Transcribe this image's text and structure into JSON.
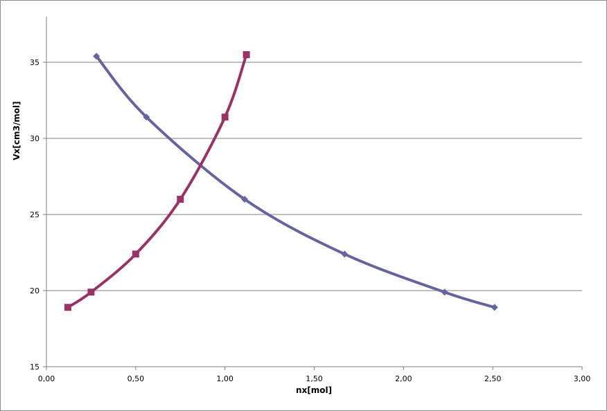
{
  "chart_data": {
    "type": "line",
    "title": "",
    "xlabel": "nx[mol]",
    "ylabel": "Vx[cm3/mol]",
    "xlim": [
      0,
      3
    ],
    "ylim": [
      15,
      38
    ],
    "x_ticks": [
      "0,00",
      "0,50",
      "1,00",
      "1,50",
      "2,00",
      "2,50",
      "3,00"
    ],
    "x_tick_values": [
      0,
      0.5,
      1,
      1.5,
      2,
      2.5,
      3
    ],
    "y_ticks": [
      "15",
      "20",
      "25",
      "30",
      "35"
    ],
    "y_tick_values": [
      15,
      20,
      25,
      30,
      35
    ],
    "grid": "horizontal",
    "legend": "none",
    "series": [
      {
        "color": "#65649c",
        "marker": "diamond",
        "points": [
          {
            "x": 0.28,
            "y": 35.4
          },
          {
            "x": 0.56,
            "y": 31.4
          },
          {
            "x": 1.11,
            "y": 26.0
          },
          {
            "x": 1.67,
            "y": 22.4
          },
          {
            "x": 2.23,
            "y": 19.9
          },
          {
            "x": 2.51,
            "y": 18.9
          }
        ]
      },
      {
        "color": "#993366",
        "marker": "square",
        "points": [
          {
            "x": 0.12,
            "y": 18.9
          },
          {
            "x": 0.25,
            "y": 19.9
          },
          {
            "x": 0.5,
            "y": 22.4
          },
          {
            "x": 0.75,
            "y": 26.0
          },
          {
            "x": 1.0,
            "y": 31.4
          },
          {
            "x": 1.12,
            "y": 35.5
          }
        ]
      }
    ]
  }
}
